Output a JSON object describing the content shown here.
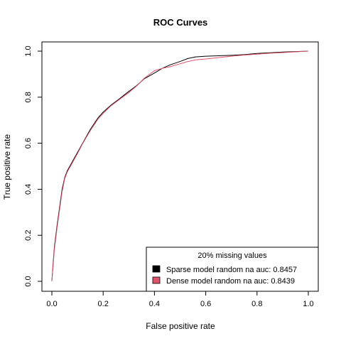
{
  "chart_data": {
    "type": "line",
    "title": "ROC Curves",
    "xlabel": "False positive rate",
    "ylabel": "True positive rate",
    "xlim": [
      0,
      1
    ],
    "ylim": [
      0,
      1
    ],
    "xticks": [
      "0.0",
      "0.2",
      "0.4",
      "0.6",
      "0.8",
      "1.0"
    ],
    "yticks": [
      "0.0",
      "0.2",
      "0.4",
      "0.6",
      "0.8",
      "1.0"
    ],
    "grid": false,
    "legend": {
      "title": "20% missing values",
      "position": "bottom-right"
    },
    "series": [
      {
        "name": "Sparse model random na auc: 0.8457",
        "color": "#000000",
        "points": [
          [
            0,
            0
          ],
          [
            0.005,
            0.08
          ],
          [
            0.01,
            0.15
          ],
          [
            0.02,
            0.24
          ],
          [
            0.03,
            0.32
          ],
          [
            0.04,
            0.4
          ],
          [
            0.05,
            0.45
          ],
          [
            0.06,
            0.48
          ],
          [
            0.08,
            0.52
          ],
          [
            0.1,
            0.56
          ],
          [
            0.12,
            0.6
          ],
          [
            0.15,
            0.66
          ],
          [
            0.18,
            0.71
          ],
          [
            0.2,
            0.735
          ],
          [
            0.23,
            0.765
          ],
          [
            0.26,
            0.79
          ],
          [
            0.3,
            0.825
          ],
          [
            0.33,
            0.85
          ],
          [
            0.36,
            0.88
          ],
          [
            0.4,
            0.905
          ],
          [
            0.43,
            0.925
          ],
          [
            0.46,
            0.94
          ],
          [
            0.5,
            0.955
          ],
          [
            0.53,
            0.968
          ],
          [
            0.56,
            0.975
          ],
          [
            0.6,
            0.978
          ],
          [
            0.65,
            0.98
          ],
          [
            0.7,
            0.982
          ],
          [
            0.75,
            0.985
          ],
          [
            0.8,
            0.99
          ],
          [
            0.85,
            0.993
          ],
          [
            0.9,
            0.996
          ],
          [
            1,
            1
          ]
        ]
      },
      {
        "name": "Dense model random na auc: 0.8439",
        "color": "#DF536B",
        "points": [
          [
            0,
            0
          ],
          [
            0.005,
            0.07
          ],
          [
            0.01,
            0.14
          ],
          [
            0.02,
            0.23
          ],
          [
            0.03,
            0.31
          ],
          [
            0.04,
            0.39
          ],
          [
            0.05,
            0.445
          ],
          [
            0.06,
            0.475
          ],
          [
            0.08,
            0.515
          ],
          [
            0.1,
            0.555
          ],
          [
            0.12,
            0.598
          ],
          [
            0.15,
            0.655
          ],
          [
            0.18,
            0.705
          ],
          [
            0.2,
            0.73
          ],
          [
            0.23,
            0.762
          ],
          [
            0.26,
            0.787
          ],
          [
            0.3,
            0.82
          ],
          [
            0.33,
            0.848
          ],
          [
            0.36,
            0.882
          ],
          [
            0.4,
            0.915
          ],
          [
            0.43,
            0.925
          ],
          [
            0.46,
            0.932
          ],
          [
            0.5,
            0.945
          ],
          [
            0.53,
            0.955
          ],
          [
            0.56,
            0.962
          ],
          [
            0.6,
            0.966
          ],
          [
            0.65,
            0.972
          ],
          [
            0.7,
            0.978
          ],
          [
            0.75,
            0.983
          ],
          [
            0.8,
            0.987
          ],
          [
            0.85,
            0.991
          ],
          [
            0.9,
            0.994
          ],
          [
            1,
            1
          ]
        ]
      }
    ]
  }
}
